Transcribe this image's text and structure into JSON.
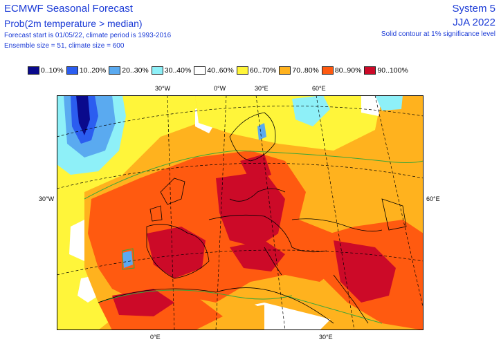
{
  "header": {
    "title": "ECMWF Seasonal Forecast",
    "subtitle": "Prob(2m temperature > median)",
    "line1": "Forecast start is 01/05/22, climate period is 1993-2016",
    "line2": "Ensemble size = 51, climate size = 600",
    "system": "System 5",
    "season": "JJA 2022",
    "contour_note": "Solid contour at 1% significance level"
  },
  "legend": [
    {
      "label": "0..10%",
      "color": "#0a0a8c"
    },
    {
      "label": "10..20%",
      "color": "#2b5df0"
    },
    {
      "label": "20..30%",
      "color": "#5aaaf0"
    },
    {
      "label": "30..40%",
      "color": "#8ef0f8"
    },
    {
      "label": "40..60%",
      "color": "#ffffff"
    },
    {
      "label": "60..70%",
      "color": "#fff53a"
    },
    {
      "label": "70..80%",
      "color": "#ffb21e"
    },
    {
      "label": "80..90%",
      "color": "#ff5a10"
    },
    {
      "label": "90..100%",
      "color": "#cc0a28"
    }
  ],
  "axes": {
    "top_30w": "30°W",
    "top_0e": "0°W",
    "top_30e": "30°E",
    "top_60e": "60°E",
    "left_30w": "30°W",
    "right_60e": "60°E",
    "bottom_0e": "0°E",
    "bottom_30e": "30°E"
  },
  "map": {
    "region": "Europe, North Atlantic, North Africa and Middle East",
    "field": "probability of 2m temperature above median, JJA 2022"
  }
}
